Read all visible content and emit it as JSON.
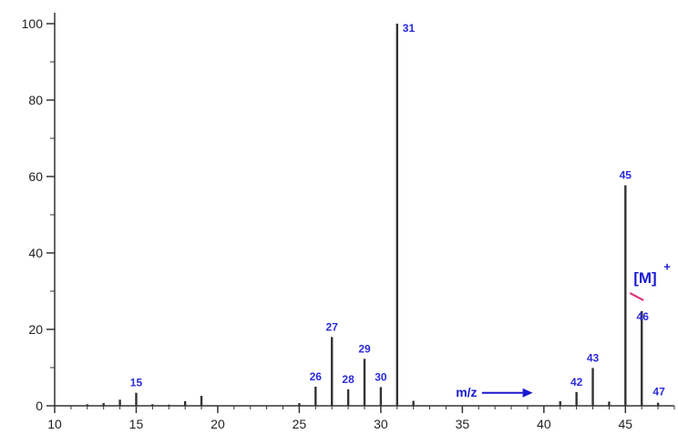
{
  "colors": {
    "axis": "#333333",
    "bar": "#333333",
    "label": "#2b2bdc",
    "annotation": "#1a1ad4",
    "marker": "#e0307a"
  },
  "chart_data": {
    "type": "bar",
    "title": "",
    "xlabel": "",
    "ylabel": "",
    "xlim": [
      10,
      48
    ],
    "ylim": [
      0,
      100
    ],
    "grid": false,
    "x_ticks": [
      10,
      15,
      20,
      25,
      30,
      35,
      40,
      45
    ],
    "y_ticks": [
      0,
      20,
      40,
      60,
      80,
      100
    ],
    "series": [
      {
        "peaks": [
          {
            "mz": 12,
            "intensity": 0.4
          },
          {
            "mz": 13,
            "intensity": 0.7
          },
          {
            "mz": 14,
            "intensity": 1.6
          },
          {
            "mz": 15,
            "intensity": 3.4,
            "label": "15"
          },
          {
            "mz": 16,
            "intensity": 0.4
          },
          {
            "mz": 17,
            "intensity": 0.3
          },
          {
            "mz": 18,
            "intensity": 1.2
          },
          {
            "mz": 19,
            "intensity": 2.6
          },
          {
            "mz": 25,
            "intensity": 0.7
          },
          {
            "mz": 26,
            "intensity": 5.0,
            "label": "26"
          },
          {
            "mz": 27,
            "intensity": 18.0,
            "label": "27"
          },
          {
            "mz": 28,
            "intensity": 4.3,
            "label": "28"
          },
          {
            "mz": 29,
            "intensity": 12.3,
            "label": "29"
          },
          {
            "mz": 30,
            "intensity": 4.9,
            "label": "30"
          },
          {
            "mz": 31,
            "intensity": 100.0,
            "label": "31"
          },
          {
            "mz": 32,
            "intensity": 1.3
          },
          {
            "mz": 41,
            "intensity": 1.2
          },
          {
            "mz": 42,
            "intensity": 3.6,
            "label": "42"
          },
          {
            "mz": 43,
            "intensity": 9.9,
            "label": "43"
          },
          {
            "mz": 44,
            "intensity": 1.1
          },
          {
            "mz": 45,
            "intensity": 57.7,
            "label": "45"
          },
          {
            "mz": 46,
            "intensity": 24.8,
            "label": "46"
          },
          {
            "mz": 47,
            "intensity": 0.8,
            "label": "47"
          }
        ]
      }
    ],
    "annotations": {
      "mz_arrow_text": "m/z",
      "molecular_ion_text": "[M]",
      "molecular_ion_superscript": "+",
      "molecular_ion_mz": 46
    }
  }
}
